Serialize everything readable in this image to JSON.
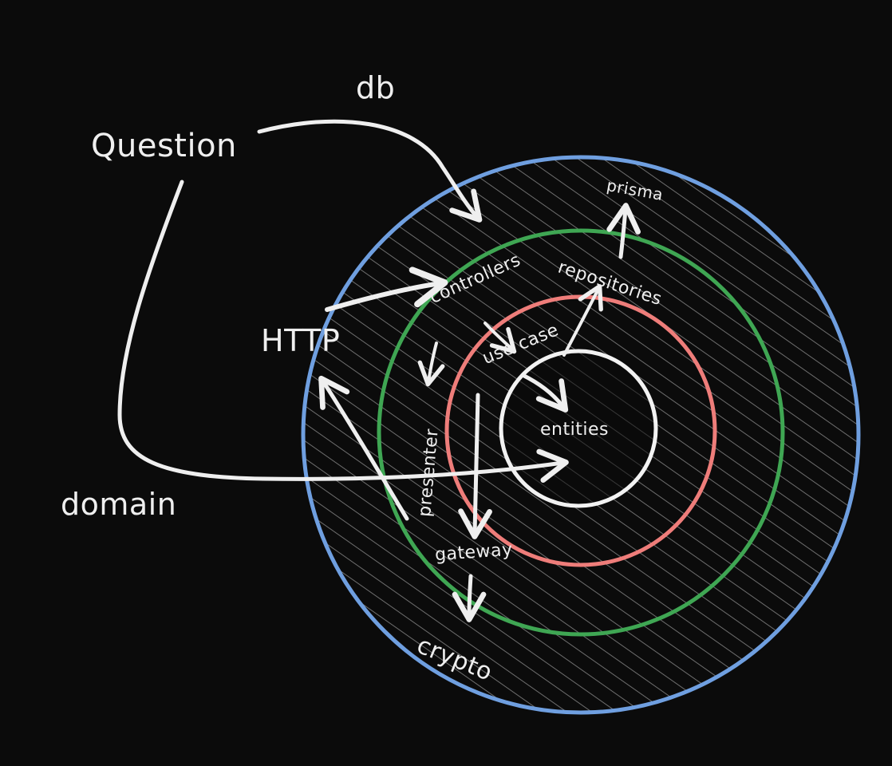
{
  "labels": {
    "question": "Question",
    "db": "db",
    "domain": "domain",
    "http": "HTTP",
    "prisma": "prisma",
    "repositories": "repositories",
    "controllers": "controllers",
    "use_case": "use case",
    "presenter": "presenter",
    "entities": "entities",
    "gateway": "gateway",
    "crypto": "crypto"
  },
  "colors": {
    "background": "#0b0b0b",
    "outer_ring": "#6f9fe0",
    "adapters_ring": "#3fa653",
    "use_cases_ring": "#ee7d7a",
    "entities_ring": "#f2f2f2",
    "ink": "#efefef",
    "hatch": "#6e6e6e"
  }
}
